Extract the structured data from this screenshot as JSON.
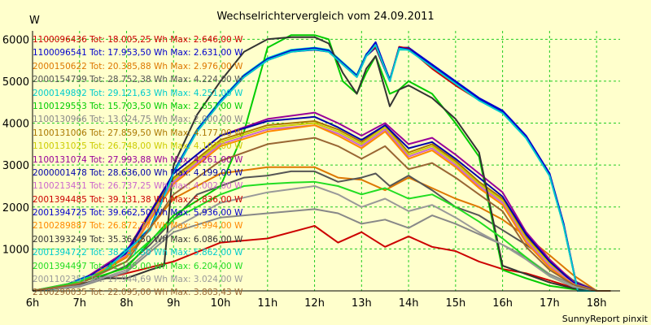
{
  "chart_data": {
    "type": "line",
    "title": "Wechselrichtervergleich vom 24.09.2011",
    "ylabel": "W",
    "footer": "SunnyReport pinxit",
    "x_ticks": [
      "6h",
      "7h",
      "8h",
      "9h",
      "10h",
      "11h",
      "12h",
      "13h",
      "14h",
      "15h",
      "16h",
      "17h",
      "18h"
    ],
    "y_ticks": [
      "1000",
      "2000",
      "3000",
      "4000",
      "5000",
      "6000"
    ],
    "xlim": [
      6,
      18.5
    ],
    "ylim": [
      0,
      6200
    ],
    "grid": true,
    "series": [
      {
        "name": "1100096436 Tot: 18.005,25 Wh Max: 2.646,00 W",
        "color": "#cc0000",
        "x": [
          6,
          7,
          8,
          9,
          10,
          11,
          12,
          12.5,
          13,
          13.5,
          14,
          14.5,
          15,
          15.5,
          16,
          16.5,
          17,
          17.5,
          18,
          18.3
        ],
        "y": [
          0,
          150,
          420,
          700,
          1150,
          1250,
          1550,
          1150,
          1400,
          1050,
          1300,
          1050,
          950,
          700,
          520,
          420,
          250,
          80,
          0,
          0
        ]
      },
      {
        "name": "1100096541 Tot: 17.953,50 Wh Max: 2.631,00 W",
        "color": "#0000cc",
        "x": [
          6,
          6.5,
          7,
          7.5,
          8,
          8.5,
          9,
          9.5,
          10,
          10.5,
          11,
          11.5,
          12,
          12.3,
          12.6,
          12.9,
          13.1,
          13.3,
          13.6,
          13.8,
          14,
          14.5,
          15,
          15.5,
          16,
          16.5,
          17,
          17.3,
          17.6,
          18,
          18.3
        ],
        "y": [
          0,
          50,
          250,
          450,
          950,
          1450,
          2800,
          3800,
          4500,
          5100,
          5500,
          5700,
          5750,
          5700,
          5400,
          5100,
          5600,
          5800,
          5000,
          5800,
          5800,
          5400,
          5000,
          4600,
          4300,
          3700,
          2800,
          1600,
          0,
          0,
          0
        ]
      },
      {
        "name": "2000150622 Tot: 20.385,88 Wh Max: 2.976,00 W",
        "color": "#dd7700",
        "x": [
          6,
          7,
          8,
          9,
          10,
          11,
          12,
          12.5,
          13,
          13.5,
          14,
          14.5,
          15,
          15.5,
          16,
          16.5,
          17,
          17.5,
          18,
          18.3
        ],
        "y": [
          0,
          150,
          800,
          2200,
          2800,
          2950,
          2950,
          2700,
          2650,
          2400,
          2700,
          2450,
          2200,
          2000,
          1700,
          1300,
          850,
          380,
          0,
          0
        ]
      },
      {
        "name": "2000154799 Tot: 28.752,38 Wh Max: 4.224,00 W",
        "color": "#555555",
        "x": [
          6,
          7,
          8,
          8.5,
          9,
          9.5,
          10,
          10.5,
          11,
          11.5,
          12,
          12.5,
          13,
          13.3,
          13.6,
          14,
          14.5,
          15,
          15.5,
          16,
          16.5,
          17,
          17.5,
          18,
          18.3
        ],
        "y": [
          0,
          100,
          600,
          1100,
          1700,
          2300,
          2500,
          2700,
          2750,
          2850,
          2850,
          2600,
          2700,
          2800,
          2500,
          2750,
          2400,
          2000,
          1800,
          1450,
          1100,
          700,
          250,
          0,
          0
        ]
      },
      {
        "name": "2000149892 Tot: 29.121,63 Wh Max: 4.251,00 W",
        "color": "#00cccc",
        "x": [
          6,
          6.5,
          7,
          7.5,
          8,
          8.5,
          9,
          9.5,
          10,
          10.5,
          11,
          11.5,
          12,
          12.3,
          12.6,
          12.9,
          13.1,
          13.3,
          13.6,
          13.8,
          14,
          14.5,
          15,
          15.5,
          16,
          16.5,
          17,
          17.3,
          17.6,
          18,
          18.3
        ],
        "y": [
          0,
          50,
          280,
          500,
          1000,
          1500,
          2850,
          3850,
          4550,
          5150,
          5550,
          5750,
          5800,
          5750,
          5450,
          5150,
          5650,
          5850,
          5050,
          5750,
          5750,
          5350,
          4950,
          4550,
          4250,
          3650,
          2750,
          1550,
          0,
          0,
          0
        ]
      },
      {
        "name": "1100129553 Tot: 15.703,50 Wh Max: 2.657,00 W",
        "color": "#00cc00",
        "x": [
          6,
          7,
          8,
          9,
          10,
          10.5,
          11,
          11.5,
          12,
          12.3,
          12.6,
          12.9,
          13.1,
          13.3,
          13.6,
          13.8,
          14,
          14.5,
          15,
          15.5,
          16,
          16.5,
          17,
          17.5,
          18,
          18.3
        ],
        "y": [
          0,
          200,
          550,
          1800,
          2500,
          3800,
          5800,
          6100,
          6100,
          6000,
          5000,
          4700,
          5200,
          5600,
          4700,
          4800,
          5000,
          4700,
          4000,
          3200,
          500,
          300,
          120,
          40,
          0,
          0
        ]
      },
      {
        "name": "1100130966 Tot: 13.024,75 Wh Max: 2.000,00 W",
        "color": "#888888",
        "x": [
          6,
          7,
          8,
          9,
          10,
          11,
          12,
          12.5,
          13,
          13.5,
          14,
          14.5,
          15,
          15.5,
          16,
          16.5,
          17,
          17.5,
          18,
          18.3
        ],
        "y": [
          0,
          100,
          450,
          1400,
          1750,
          1850,
          1950,
          1850,
          1600,
          1700,
          1500,
          1800,
          1600,
          1350,
          1100,
          800,
          400,
          150,
          0,
          0
        ]
      },
      {
        "name": "1100131006 Tot: 27.859,50 Wh Max: 4.177,00 W",
        "color": "#aa7700",
        "x": [
          6,
          7,
          8,
          9,
          10,
          11,
          12,
          12.5,
          13,
          13.5,
          14,
          14.5,
          15,
          15.5,
          16,
          16.5,
          17,
          17.5,
          18,
          18.3
        ],
        "y": [
          0,
          200,
          900,
          2700,
          3600,
          3950,
          4050,
          3850,
          3550,
          3950,
          3300,
          3500,
          3100,
          2600,
          2200,
          1300,
          700,
          200,
          0,
          0
        ]
      },
      {
        "name": "1100131025 Tot: 26.748,00 Wh Max: 4.107,00 W",
        "color": "#cccc00",
        "x": [
          6,
          7,
          8,
          9,
          10,
          11,
          12,
          12.5,
          13,
          13.5,
          14,
          14.5,
          15,
          15.5,
          16,
          16.5,
          17,
          17.5,
          18,
          18.3
        ],
        "y": [
          0,
          200,
          880,
          2650,
          3550,
          3900,
          4000,
          3800,
          3500,
          3900,
          3250,
          3450,
          3050,
          2550,
          2150,
          1250,
          650,
          180,
          0,
          0
        ]
      },
      {
        "name": "1100131074 Tot: 27.993,88 Wh Max: 4.261,00 W",
        "color": "#990099",
        "x": [
          6,
          7,
          8,
          9,
          10,
          11,
          12,
          12.5,
          13,
          13.5,
          14,
          14.5,
          15,
          15.5,
          16,
          16.5,
          17,
          17.5,
          18,
          18.3
        ],
        "y": [
          0,
          220,
          950,
          2800,
          3700,
          4100,
          4250,
          4000,
          3700,
          4000,
          3500,
          3650,
          3250,
          2800,
          2350,
          1400,
          750,
          220,
          0,
          0
        ]
      },
      {
        "name": "2000001478 Tot: 28.636,00 Wh Max: 4.199,00 W",
        "color": "#0000aa",
        "x": [
          6,
          7,
          8,
          9,
          10,
          11,
          12,
          12.5,
          13,
          13.5,
          14,
          14.5,
          15,
          15.5,
          16,
          16.5,
          17,
          17.5,
          18,
          18.3
        ],
        "y": [
          0,
          200,
          900,
          2800,
          3700,
          4050,
          4150,
          3900,
          3600,
          3950,
          3400,
          3550,
          3150,
          2700,
          2250,
          1350,
          700,
          200,
          0,
          0
        ]
      },
      {
        "name": "1100213451 Tot: 26.737,25 Wh Max: 4.002,00 W",
        "color": "#cc66cc",
        "x": [
          6,
          7,
          8,
          9,
          10,
          11,
          12,
          12.5,
          13,
          13.5,
          14,
          14.5,
          15,
          15.5,
          16,
          16.5,
          17,
          17.5,
          18,
          18.3
        ],
        "y": [
          0,
          190,
          850,
          2600,
          3500,
          3850,
          3950,
          3750,
          3450,
          3850,
          3200,
          3400,
          3000,
          2500,
          2100,
          1200,
          600,
          170,
          0,
          0
        ]
      },
      {
        "name": "2001394485 Tot: 39.131,38 Wh Max: 5.836,00 W",
        "color": "#cc0000",
        "x": [
          6,
          6.5,
          7,
          7.5,
          8,
          8.5,
          9,
          9.5,
          10,
          10.5,
          11,
          11.5,
          12,
          12.3,
          12.6,
          12.9,
          13.1,
          13.3,
          13.6,
          13.8,
          14,
          14.5,
          15,
          15.5,
          16,
          16.5,
          17,
          17.3,
          17.6,
          18,
          18.3
        ],
        "y": [
          0,
          50,
          260,
          460,
          960,
          1460,
          2820,
          3820,
          4520,
          5120,
          5520,
          5720,
          5780,
          5720,
          5420,
          5120,
          5620,
          5820,
          5020,
          5820,
          5780,
          5300,
          4900,
          4550,
          4250,
          3650,
          2750,
          1550,
          0,
          0,
          0
        ]
      },
      {
        "name": "2001394725 Tot: 39.662,50 Wh Max: 5.936,00 W",
        "color": "#0000cc",
        "x": [
          6,
          6.5,
          7,
          7.5,
          8,
          8.5,
          9,
          9.5,
          10,
          10.5,
          11,
          11.5,
          12,
          12.3,
          12.6,
          12.9,
          13.1,
          13.3,
          13.6,
          13.8,
          14,
          14.5,
          15,
          15.5,
          16,
          16.5,
          17,
          17.3,
          17.6,
          18,
          18.3
        ],
        "y": [
          0,
          50,
          270,
          470,
          970,
          1470,
          2830,
          3830,
          4530,
          5130,
          5530,
          5730,
          5790,
          5730,
          5430,
          5130,
          5630,
          5930,
          5030,
          5800,
          5760,
          5380,
          4980,
          4580,
          4280,
          3680,
          2780,
          1580,
          0,
          0,
          0
        ]
      },
      {
        "name": "2100289887 Tot: 26.872,77 Wh Max: 3.994,00 W",
        "color": "#ff8800",
        "x": [
          6,
          7,
          8,
          9,
          10,
          11,
          12,
          12.5,
          13,
          13.5,
          14,
          14.5,
          15,
          15.5,
          16,
          16.5,
          17,
          17.5,
          18,
          18.3
        ],
        "y": [
          0,
          180,
          820,
          2550,
          3450,
          3800,
          3950,
          3700,
          3400,
          3800,
          3150,
          3350,
          2950,
          2450,
          2050,
          1150,
          550,
          160,
          0,
          0
        ]
      },
      {
        "name": "2001393249 Tot: 35.364,50 Wh Max: 6.086,00 W",
        "color": "#333333",
        "x": [
          6,
          7,
          7.5,
          8,
          8.5,
          8.8,
          9,
          9.5,
          10,
          10.5,
          11,
          11.5,
          12,
          12.3,
          12.6,
          12.9,
          13.1,
          13.3,
          13.6,
          13.8,
          14,
          14.5,
          15,
          15.5,
          16,
          16.5,
          17,
          17.5,
          18,
          18.3
        ],
        "y": [
          0,
          150,
          300,
          300,
          500,
          600,
          3000,
          4200,
          5000,
          5700,
          6000,
          6050,
          6050,
          5900,
          5200,
          4700,
          5300,
          5600,
          4400,
          4800,
          4900,
          4600,
          4100,
          3300,
          600,
          400,
          200,
          60,
          0,
          0
        ]
      },
      {
        "name": "2001394722 Tot: 38.737,50 Wh Max: 5.862,00 W",
        "color": "#00cccc",
        "x": [
          6,
          6.5,
          7,
          7.5,
          8,
          8.5,
          9,
          9.5,
          10,
          10.5,
          11,
          11.5,
          12,
          12.3,
          12.6,
          12.9,
          13.1,
          13.3,
          13.6,
          13.8,
          14,
          14.5,
          15,
          15.5,
          16,
          16.5,
          17,
          17.3,
          17.6,
          18,
          18.3
        ],
        "y": [
          0,
          50,
          250,
          450,
          950,
          1450,
          2800,
          3800,
          4500,
          5100,
          5500,
          5700,
          5760,
          5700,
          5400,
          5100,
          5600,
          5860,
          5000,
          5780,
          5740,
          5340,
          4940,
          4540,
          4240,
          3640,
          2740,
          1540,
          0,
          0,
          0
        ]
      },
      {
        "name": "2001394497 Tot: 41.135,00 Wh Max: 6.204,00 W",
        "color": "#22dd22",
        "x": [
          6,
          7,
          8,
          9,
          10,
          10.5,
          11,
          11.5,
          12,
          12.5,
          13,
          13.5,
          14,
          14.5,
          15,
          15.5,
          16,
          16.5,
          17,
          17.5,
          18,
          18.3
        ],
        "y": [
          0,
          220,
          700,
          1700,
          2300,
          2500,
          2550,
          2580,
          2600,
          2500,
          2300,
          2450,
          2200,
          2300,
          2000,
          1650,
          1250,
          800,
          350,
          100,
          0,
          0
        ]
      },
      {
        "name": "2001102351 Tot: 17.944,69 Wh Max: 3.024,00 W",
        "color": "#999999",
        "x": [
          6,
          7,
          8,
          9,
          10,
          11,
          12,
          12.5,
          13,
          13.5,
          14,
          14.5,
          15,
          15.5,
          16,
          16.5,
          17,
          17.5,
          18,
          18.3
        ],
        "y": [
          0,
          120,
          500,
          1500,
          2100,
          2350,
          2500,
          2300,
          2000,
          2200,
          1900,
          2050,
          1750,
          1400,
          1100,
          750,
          350,
          100,
          0,
          0
        ]
      },
      {
        "name": "2100290035 Tot: 22.095,00 Wh Max: 3.803,43 W",
        "color": "#996633",
        "x": [
          6,
          7,
          8,
          9,
          10,
          11,
          12,
          12.5,
          13,
          13.5,
          14,
          14.5,
          15,
          15.5,
          16,
          16.5,
          17,
          17.5,
          18,
          18.3
        ],
        "y": [
          0,
          170,
          700,
          2300,
          3100,
          3500,
          3650,
          3450,
          3150,
          3450,
          2900,
          3050,
          2700,
          2300,
          1900,
          1050,
          500,
          150,
          0,
          0
        ]
      }
    ]
  }
}
